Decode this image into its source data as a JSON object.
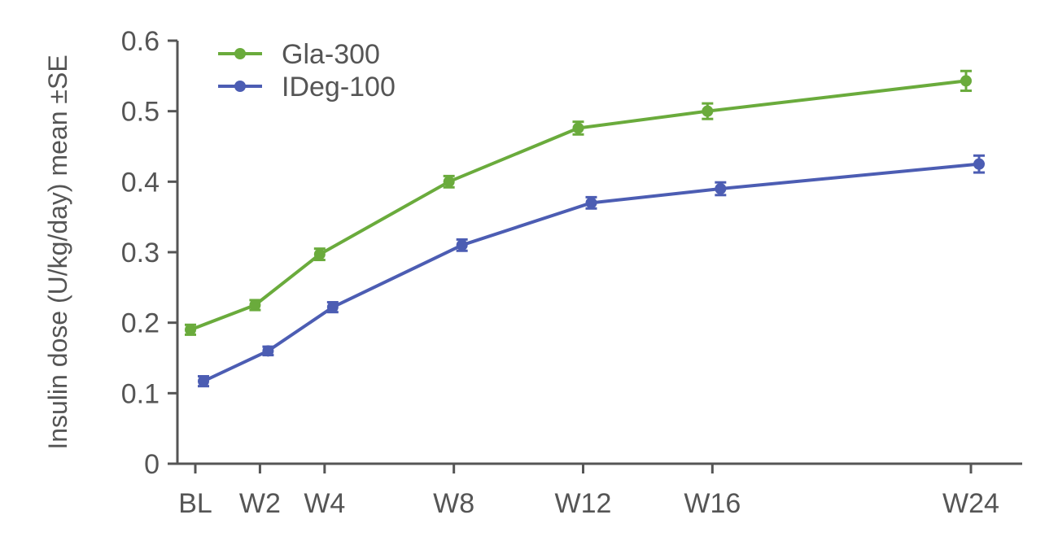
{
  "chart_data": {
    "type": "line",
    "title": "",
    "xlabel": "",
    "ylabel": "Insulin dose (U/kg/day) mean ±SE",
    "ylim": [
      0,
      0.6
    ],
    "yticks": [
      "0",
      "0.1",
      "0.2",
      "0.3",
      "0.4",
      "0.5",
      "0.6"
    ],
    "categories": [
      "BL",
      "W2",
      "W4",
      "W8",
      "W12",
      "W16",
      "W24"
    ],
    "x_weeks": [
      0,
      2,
      4,
      8,
      12,
      16,
      24
    ],
    "grid": false,
    "legend": "top-left",
    "series": [
      {
        "name": "Gla-300",
        "color": "#6aab3c",
        "values": [
          0.19,
          0.225,
          0.297,
          0.4,
          0.476,
          0.5,
          0.543
        ],
        "se": [
          0.007,
          0.007,
          0.008,
          0.008,
          0.009,
          0.011,
          0.014
        ]
      },
      {
        "name": "IDeg-100",
        "color": "#4c5db3",
        "values": [
          0.117,
          0.16,
          0.222,
          0.31,
          0.37,
          0.39,
          0.425
        ],
        "se": [
          0.007,
          0.006,
          0.007,
          0.008,
          0.008,
          0.009,
          0.012
        ]
      }
    ]
  }
}
